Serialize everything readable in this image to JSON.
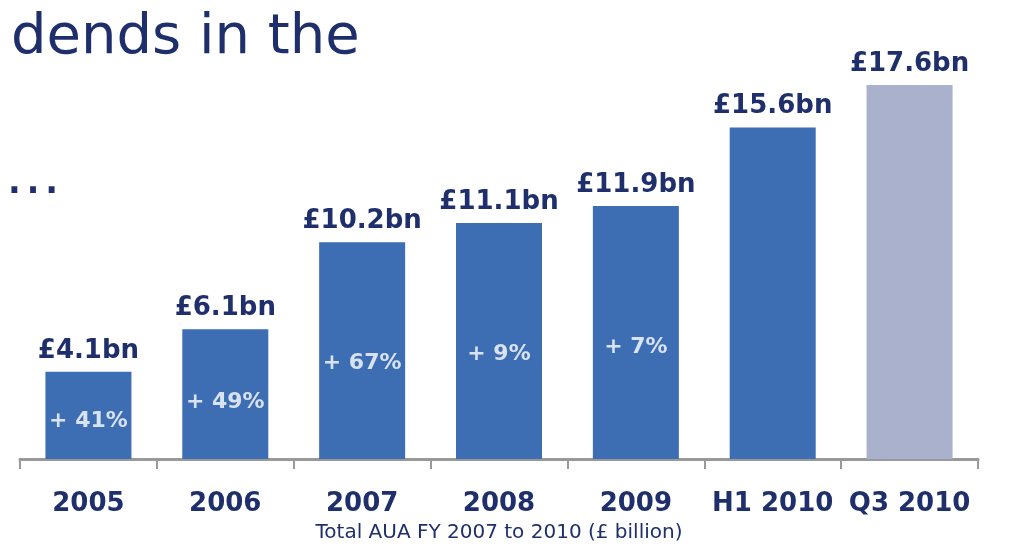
{
  "chart_data": {
    "type": "bar",
    "title": "dends in the",
    "xlabel": "Total AUA FY 2007 to 2010 (£ billion)",
    "categories": [
      "2005",
      "2006",
      "2007",
      "2008",
      "2009",
      "H1 2010",
      "Q3 2010"
    ],
    "values": [
      4.1,
      6.1,
      10.2,
      11.1,
      11.9,
      15.6,
      17.6
    ],
    "colors": [
      "#3d6db3",
      "#3d6db3",
      "#3d6db3",
      "#3d6db3",
      "#3d6db3",
      "#3d6db3",
      "#a9b1cc"
    ],
    "value_labels": [
      "£4.1bn",
      "£6.1bn",
      "£10.2bn",
      "£11.1bn",
      "£11.9bn",
      "£15.6bn",
      "£17.6bn"
    ],
    "annotations": [
      "…",
      "+ 41%",
      "+ 49%",
      "+ 67%",
      "+ 9%",
      "+ 7%"
    ]
  }
}
